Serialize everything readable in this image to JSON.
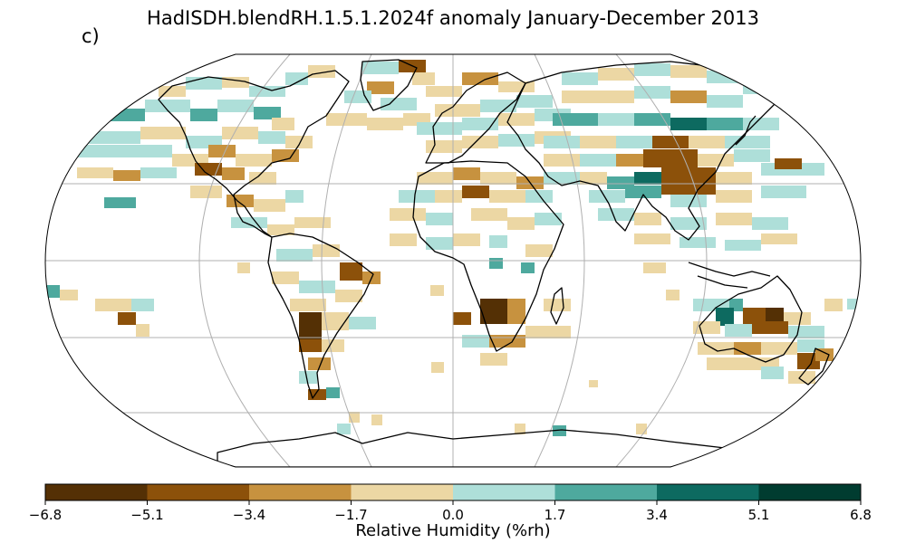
{
  "title": "HadISDH.blendRH.1.5.1.2024f anomaly January-December 2013",
  "panel_label": "c)",
  "colorbar": {
    "label": "Relative Humidity (%rh)",
    "ticks": [
      "−6.8",
      "−5.1",
      "−3.4",
      "−1.7",
      "0.0",
      "1.7",
      "3.4",
      "5.1",
      "6.8"
    ],
    "colors": [
      "#543005",
      "#8c510a",
      "#c7923f",
      "#ecd7a4",
      "#aedfd9",
      "#4ea99e",
      "#0d6a60",
      "#003c30"
    ]
  },
  "map": {
    "projection": "Robinson",
    "graticule_color": "#b0b0b0",
    "coastline_color": "#000000"
  }
}
